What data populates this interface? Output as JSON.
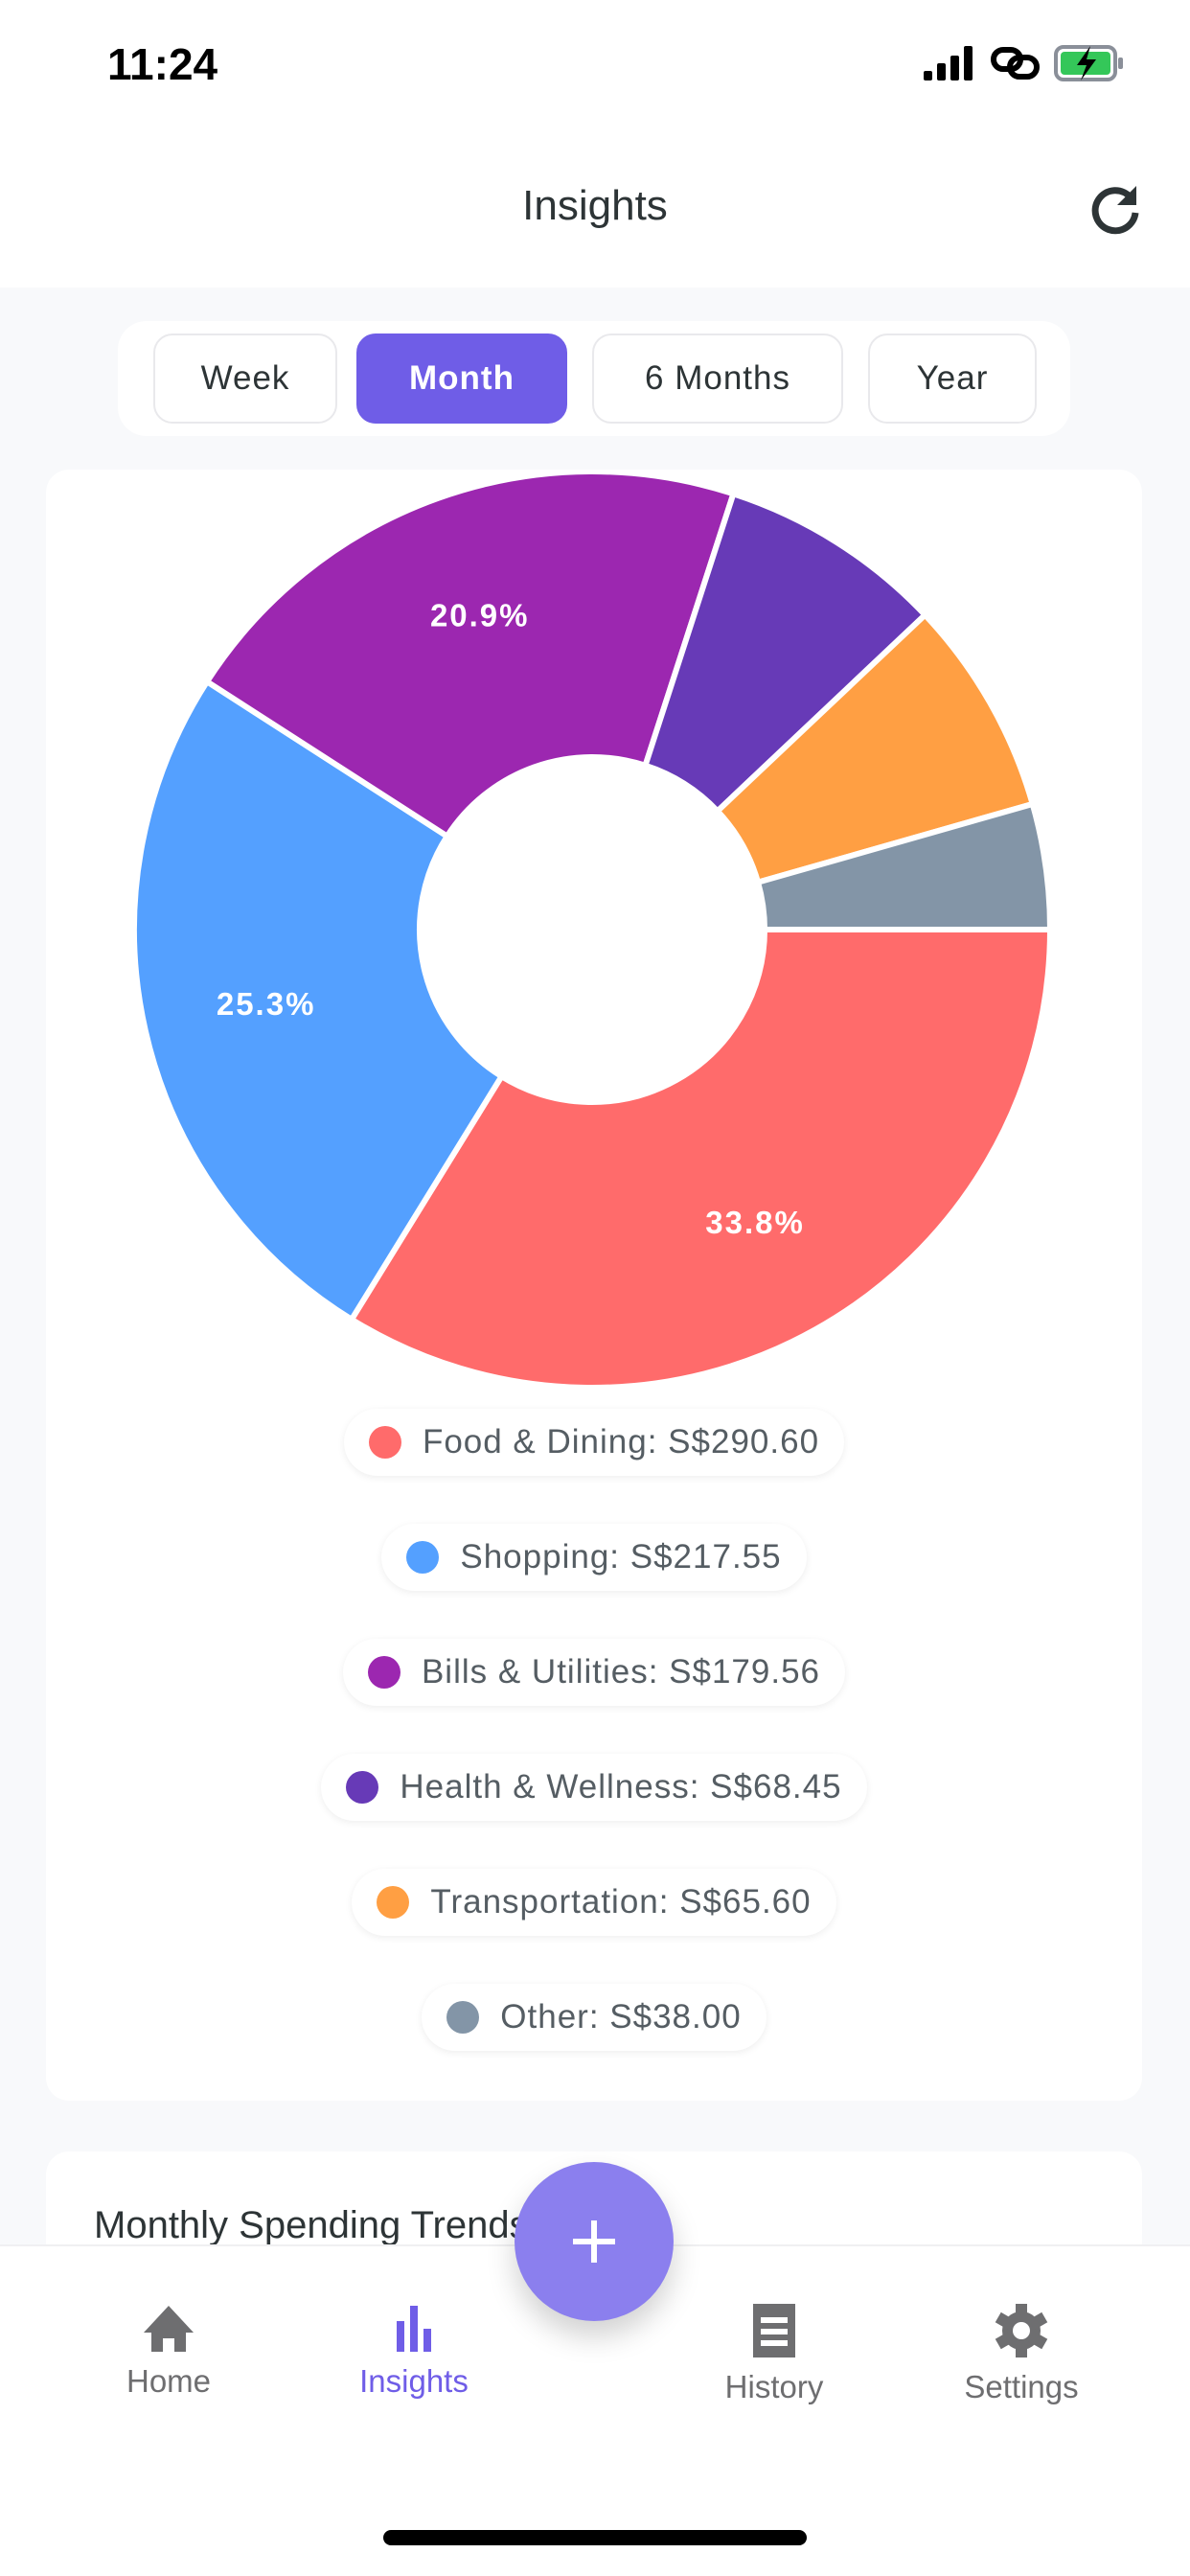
{
  "status_bar": {
    "time": "11:24"
  },
  "header": {
    "title": "Insights"
  },
  "period_tabs": [
    {
      "label": "Week",
      "active": false
    },
    {
      "label": "Month",
      "active": true
    },
    {
      "label": "6 Months",
      "active": false
    },
    {
      "label": "Year",
      "active": false
    }
  ],
  "chart_data": {
    "type": "pie",
    "donut": true,
    "categories": [
      "Food & Dining",
      "Shopping",
      "Bills & Utilities",
      "Health & Wellness",
      "Transportation",
      "Other"
    ],
    "values": [
      290.6,
      217.55,
      179.56,
      68.45,
      65.6,
      38.0
    ],
    "percent_labels": [
      "33.8%",
      "25.3%",
      "20.9%",
      "",
      "",
      ""
    ],
    "colors": [
      "#ff6b6b",
      "#54a0ff",
      "#9c27b0",
      "#673ab7",
      "#ff9f43",
      "#8395a7"
    ]
  },
  "legend": [
    {
      "label": "Food & Dining: S$290.60",
      "color": "#ff6b6b"
    },
    {
      "label": "Shopping: S$217.55",
      "color": "#54a0ff"
    },
    {
      "label": "Bills & Utilities: S$179.56",
      "color": "#9c27b0"
    },
    {
      "label": "Health & Wellness: S$68.45",
      "color": "#673ab7"
    },
    {
      "label": "Transportation: S$65.60",
      "color": "#ff9f43"
    },
    {
      "label": "Other: S$38.00",
      "color": "#8395a7"
    }
  ],
  "trend_card": {
    "title": "Monthly Spending Trends"
  },
  "tabbar": [
    {
      "label": "Home",
      "icon": "home-icon"
    },
    {
      "label": "Insights",
      "icon": "bar-chart-icon",
      "active": true
    },
    {
      "label": "History",
      "icon": "receipt-icon"
    },
    {
      "label": "Settings",
      "icon": "gear-icon"
    }
  ],
  "accent": "#6f5de7"
}
